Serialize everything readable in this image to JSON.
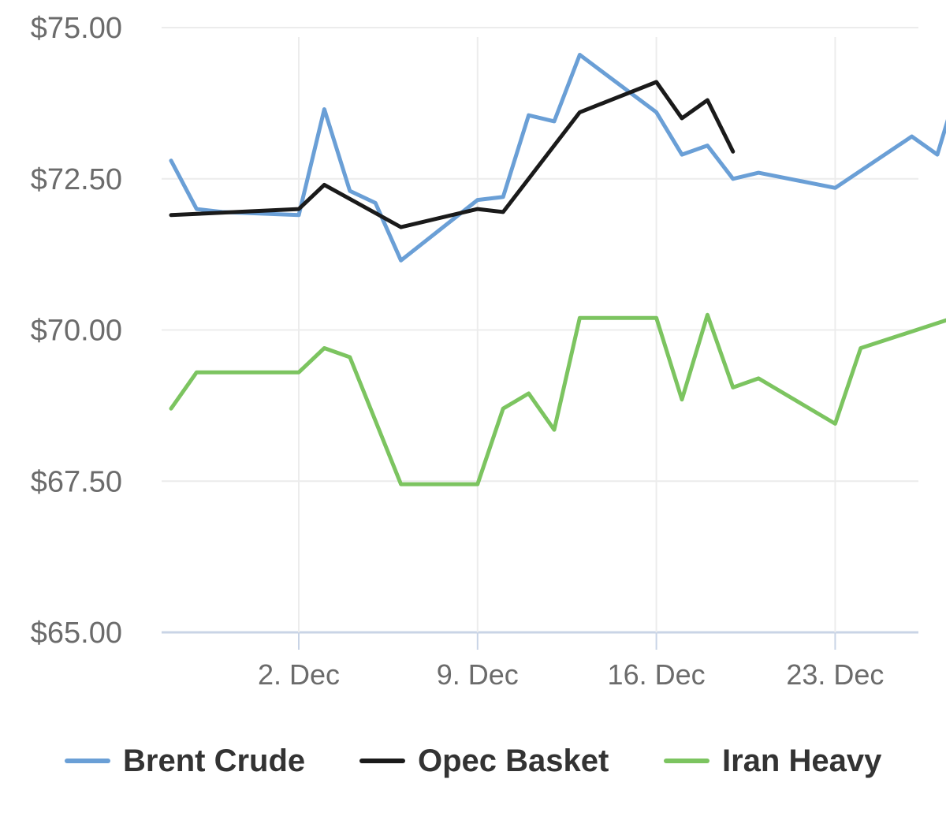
{
  "chart_data": {
    "type": "line",
    "yticks": [
      "$75.00",
      "$72.50",
      "$70.00",
      "$67.50",
      "$65.00"
    ],
    "ylim": [
      65,
      75
    ],
    "xlim": [
      "2019-11-27",
      "2019-12-29"
    ],
    "xticks": [
      {
        "date": "2019-12-02",
        "label": "2. Dec"
      },
      {
        "date": "2019-12-09",
        "label": "9. Dec"
      },
      {
        "date": "2019-12-16",
        "label": "16. Dec"
      },
      {
        "date": "2019-12-23",
        "label": "23. Dec"
      }
    ],
    "grid": true,
    "legend_position": "bottom",
    "series": [
      {
        "name": "Brent Crude",
        "color": "#6a9fd6",
        "points": [
          [
            "2019-11-27",
            72.8
          ],
          [
            "2019-11-28",
            72.0
          ],
          [
            "2019-11-29",
            71.95
          ],
          [
            "2019-12-02",
            71.9
          ],
          [
            "2019-12-03",
            73.65
          ],
          [
            "2019-12-04",
            72.3
          ],
          [
            "2019-12-05",
            72.1
          ],
          [
            "2019-12-06",
            71.15
          ],
          [
            "2019-12-09",
            72.15
          ],
          [
            "2019-12-10",
            72.2
          ],
          [
            "2019-12-11",
            73.55
          ],
          [
            "2019-12-12",
            73.45
          ],
          [
            "2019-12-13",
            74.55
          ],
          [
            "2019-12-16",
            73.6
          ],
          [
            "2019-12-17",
            72.9
          ],
          [
            "2019-12-18",
            73.05
          ],
          [
            "2019-12-19",
            72.5
          ],
          [
            "2019-12-20",
            72.6
          ],
          [
            "2019-12-23",
            72.35
          ],
          [
            "2019-12-26",
            73.2
          ],
          [
            "2019-12-27",
            72.9
          ],
          [
            "2019-12-28",
            74.3
          ]
        ]
      },
      {
        "name": "Opec Basket",
        "color": "#1a1a1a",
        "points": [
          [
            "2019-11-27",
            71.9
          ],
          [
            "2019-12-02",
            72.0
          ],
          [
            "2019-12-03",
            72.4
          ],
          [
            "2019-12-06",
            71.7
          ],
          [
            "2019-12-09",
            72.0
          ],
          [
            "2019-12-10",
            71.95
          ],
          [
            "2019-12-13",
            73.6
          ],
          [
            "2019-12-16",
            74.1
          ],
          [
            "2019-12-17",
            73.5
          ],
          [
            "2019-12-18",
            73.8
          ],
          [
            "2019-12-19",
            72.95
          ]
        ]
      },
      {
        "name": "Iran Heavy",
        "color": "#7cc460",
        "points": [
          [
            "2019-11-27",
            68.7
          ],
          [
            "2019-11-28",
            69.3
          ],
          [
            "2019-12-02",
            69.3
          ],
          [
            "2019-12-03",
            69.7
          ],
          [
            "2019-12-04",
            69.55
          ],
          [
            "2019-12-06",
            67.45
          ],
          [
            "2019-12-09",
            67.45
          ],
          [
            "2019-12-10",
            68.7
          ],
          [
            "2019-12-11",
            68.95
          ],
          [
            "2019-12-12",
            68.35
          ],
          [
            "2019-12-13",
            70.2
          ],
          [
            "2019-12-16",
            70.2
          ],
          [
            "2019-12-17",
            68.85
          ],
          [
            "2019-12-18",
            70.25
          ],
          [
            "2019-12-19",
            69.05
          ],
          [
            "2019-12-20",
            69.2
          ],
          [
            "2019-12-23",
            68.45
          ],
          [
            "2019-12-24",
            69.7
          ],
          [
            "2019-12-28",
            70.25
          ]
        ]
      }
    ]
  }
}
